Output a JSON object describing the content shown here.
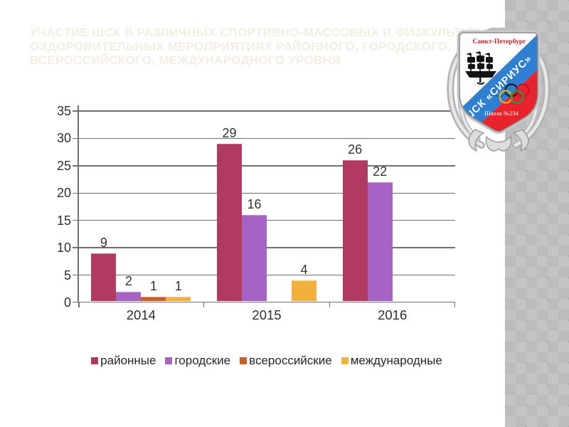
{
  "slide": {
    "title_lines": [
      "УЧАСТИЕ ШСК В РАЗЛИЧНЫХ СПОРТИВНО-МАССОВЫХ И ФИЗКУЛЬТУРНО-",
      "ОЗДОРОВИТЕЛЬНЫХ МЕРОПРИЯТИЯХ РАЙОННОГО, ГОРОДСКОГО,",
      "ВСЕРОССИЙСКОГО, МЕЖДУНАРОДНОГО УРОВНЯ"
    ],
    "title_color": "#f4eee2"
  },
  "chart_data": {
    "type": "bar",
    "title": "",
    "xlabel": "",
    "ylabel": "",
    "categories": [
      "2014",
      "2015",
      "2016"
    ],
    "series": [
      {
        "key": "district",
        "name": "районные",
        "color": "#b13a62",
        "values": [
          9,
          29,
          26
        ]
      },
      {
        "key": "city",
        "name": "городские",
        "color": "#a763c4",
        "values": [
          2,
          16,
          22
        ]
      },
      {
        "key": "all-russian",
        "name": "всероссийские",
        "color": "#c95f24",
        "values": [
          1,
          0,
          0
        ]
      },
      {
        "key": "international",
        "name": "международные",
        "color": "#f2b03c",
        "values": [
          1,
          4,
          0
        ]
      }
    ],
    "ylim": [
      0,
      35
    ],
    "ytick_step": 5,
    "yticks": [
      0,
      5,
      10,
      15,
      20,
      25,
      30,
      35
    ],
    "grid": true,
    "legend_position": "bottom",
    "value_labels_shown": true,
    "zero_value_bars_hidden": true
  },
  "emblem": {
    "city": "Санкт-Петербург",
    "club": "ШСК «СИРИУС»",
    "school": "Школа №234",
    "colors": {
      "band_blue": "#2f80d2",
      "field_red": "#e8232b",
      "city_text_red": "#c3242b"
    }
  }
}
